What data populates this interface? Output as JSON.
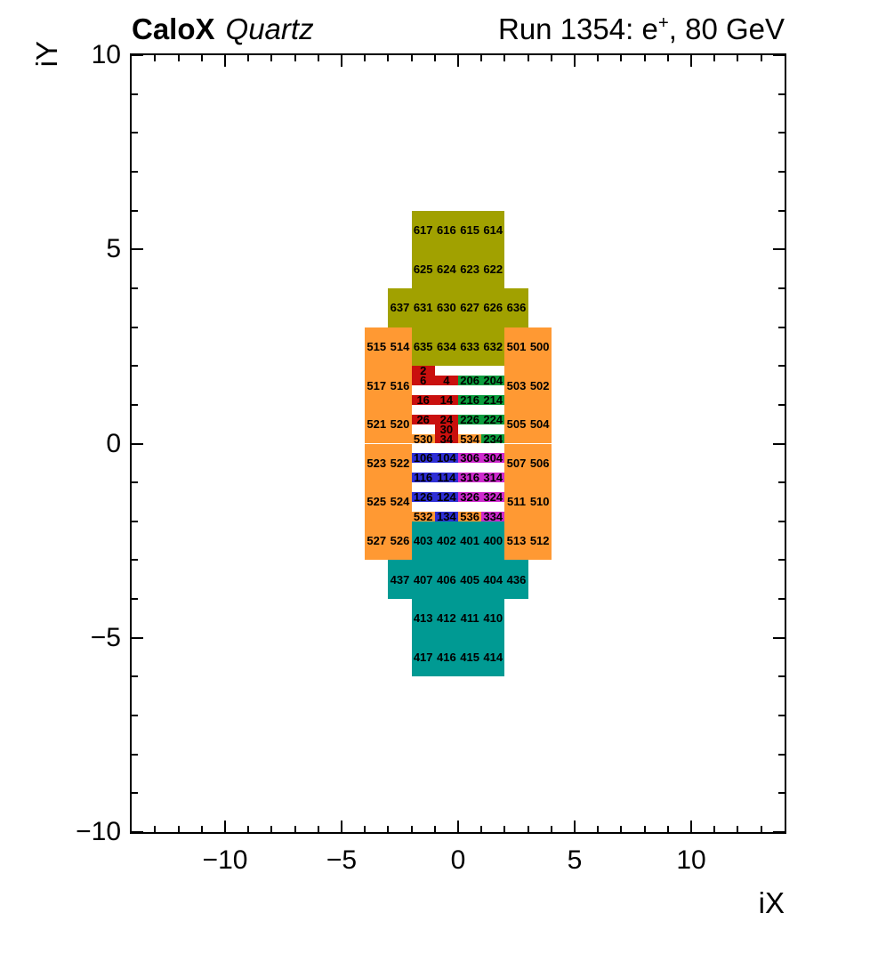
{
  "titles": {
    "left_primary": "CaloX",
    "left_secondary": "Quartz",
    "right_prefix": "Run 1354: e",
    "right_sup": "+",
    "right_suffix": ", 80 GeV"
  },
  "chart_data": {
    "type": "heatmap",
    "title": "CaloX Quartz — Run 1354: e+, 80 GeV",
    "xlabel": "iX",
    "ylabel": "iY",
    "xlim": [
      -14,
      14
    ],
    "ylim": [
      -10,
      10
    ],
    "grid": false,
    "x_ticks": {
      "values": [
        -10,
        -5,
        0,
        5,
        10
      ],
      "labels": [
        "−10",
        "−5",
        "0",
        "5",
        "10"
      ]
    },
    "y_ticks": {
      "values": [
        10,
        5,
        0,
        -5,
        -10
      ],
      "labels": [
        "10",
        "5",
        "0",
        "−5",
        "−10"
      ]
    },
    "minor_tick_step": 1,
    "colors": {
      "orange": "#FF9933",
      "olive": "#A1A100",
      "teal": "#009A93",
      "red": "#C9100E",
      "green": "#0A9C3C",
      "blue": "#2E2ED6",
      "magenta": "#CE29CE"
    },
    "cells_format": [
      "label",
      "ix_left",
      "iy_top",
      "width_units",
      "height_units",
      "color_key"
    ],
    "cells": [
      [
        617,
        -2,
        6,
        1,
        1,
        "olive"
      ],
      [
        616,
        -1,
        6,
        1,
        1,
        "olive"
      ],
      [
        615,
        0,
        6,
        1,
        1,
        "olive"
      ],
      [
        614,
        1,
        6,
        1,
        1,
        "olive"
      ],
      [
        625,
        -2,
        5,
        1,
        1,
        "olive"
      ],
      [
        624,
        -1,
        5,
        1,
        1,
        "olive"
      ],
      [
        623,
        0,
        5,
        1,
        1,
        "olive"
      ],
      [
        622,
        1,
        5,
        1,
        1,
        "olive"
      ],
      [
        637,
        -3,
        4,
        1,
        1,
        "olive"
      ],
      [
        631,
        -2,
        4,
        1,
        1,
        "olive"
      ],
      [
        630,
        -1,
        4,
        1,
        1,
        "olive"
      ],
      [
        627,
        0,
        4,
        1,
        1,
        "olive"
      ],
      [
        626,
        1,
        4,
        1,
        1,
        "olive"
      ],
      [
        636,
        2,
        4,
        1,
        1,
        "olive"
      ],
      [
        635,
        -2,
        3,
        1,
        1,
        "olive"
      ],
      [
        634,
        -1,
        3,
        1,
        1,
        "olive"
      ],
      [
        633,
        0,
        3,
        1,
        1,
        "olive"
      ],
      [
        632,
        1,
        3,
        1,
        1,
        "olive"
      ],
      [
        515,
        -4,
        3,
        1,
        1,
        "orange"
      ],
      [
        514,
        -3,
        3,
        1,
        1,
        "orange"
      ],
      [
        501,
        2,
        3,
        1,
        1,
        "orange"
      ],
      [
        500,
        3,
        3,
        1,
        1,
        "orange"
      ],
      [
        517,
        -4,
        2,
        1,
        1,
        "orange"
      ],
      [
        516,
        -3,
        2,
        1,
        1,
        "orange"
      ],
      [
        503,
        2,
        2,
        1,
        1,
        "orange"
      ],
      [
        502,
        3,
        2,
        1,
        1,
        "orange"
      ],
      [
        521,
        -4,
        1,
        1,
        1,
        "orange"
      ],
      [
        520,
        -3,
        1,
        1,
        1,
        "orange"
      ],
      [
        505,
        2,
        1,
        1,
        1,
        "orange"
      ],
      [
        504,
        3,
        1,
        1,
        1,
        "orange"
      ],
      [
        523,
        -4,
        0,
        1,
        1,
        "orange"
      ],
      [
        522,
        -3,
        0,
        1,
        1,
        "orange"
      ],
      [
        507,
        2,
        0,
        1,
        1,
        "orange"
      ],
      [
        506,
        3,
        0,
        1,
        1,
        "orange"
      ],
      [
        525,
        -4,
        -1,
        1,
        1,
        "orange"
      ],
      [
        524,
        -3,
        -1,
        1,
        1,
        "orange"
      ],
      [
        511,
        2,
        -1,
        1,
        1,
        "orange"
      ],
      [
        510,
        3,
        -1,
        1,
        1,
        "orange"
      ],
      [
        527,
        -4,
        -2,
        1,
        1,
        "orange"
      ],
      [
        526,
        -3,
        -2,
        1,
        1,
        "orange"
      ],
      [
        513,
        2,
        -2,
        1,
        1,
        "orange"
      ],
      [
        512,
        3,
        -2,
        1,
        1,
        "orange"
      ],
      [
        403,
        -2,
        -2,
        1,
        1,
        "teal"
      ],
      [
        402,
        -1,
        -2,
        1,
        1,
        "teal"
      ],
      [
        401,
        0,
        -2,
        1,
        1,
        "teal"
      ],
      [
        400,
        1,
        -2,
        1,
        1,
        "teal"
      ],
      [
        437,
        -3,
        -3,
        1,
        1,
        "teal"
      ],
      [
        407,
        -2,
        -3,
        1,
        1,
        "teal"
      ],
      [
        406,
        -1,
        -3,
        1,
        1,
        "teal"
      ],
      [
        405,
        0,
        -3,
        1,
        1,
        "teal"
      ],
      [
        404,
        1,
        -3,
        1,
        1,
        "teal"
      ],
      [
        436,
        2,
        -3,
        1,
        1,
        "teal"
      ],
      [
        413,
        -2,
        -4,
        1,
        1,
        "teal"
      ],
      [
        412,
        -1,
        -4,
        1,
        1,
        "teal"
      ],
      [
        411,
        0,
        -4,
        1,
        1,
        "teal"
      ],
      [
        410,
        1,
        -4,
        1,
        1,
        "teal"
      ],
      [
        417,
        -2,
        -5,
        1,
        1,
        "teal"
      ],
      [
        416,
        -1,
        -5,
        1,
        1,
        "teal"
      ],
      [
        415,
        0,
        -5,
        1,
        1,
        "teal"
      ],
      [
        414,
        1,
        -5,
        1,
        1,
        "teal"
      ],
      [
        2,
        -2,
        2,
        1,
        0.25,
        "red"
      ],
      [
        6,
        -2,
        1.75,
        1,
        0.25,
        "red"
      ],
      [
        4,
        -1,
        1.75,
        1,
        0.25,
        "red"
      ],
      [
        206,
        0,
        1.75,
        1,
        0.25,
        "green"
      ],
      [
        204,
        1,
        1.75,
        1,
        0.25,
        "green"
      ],
      [
        16,
        -2,
        1.25,
        1,
        0.25,
        "red"
      ],
      [
        14,
        -1,
        1.25,
        1,
        0.25,
        "red"
      ],
      [
        216,
        0,
        1.25,
        1,
        0.25,
        "green"
      ],
      [
        214,
        1,
        1.25,
        1,
        0.25,
        "green"
      ],
      [
        26,
        -2,
        0.75,
        1,
        0.25,
        "red"
      ],
      [
        24,
        -1,
        0.75,
        1,
        0.25,
        "red"
      ],
      [
        226,
        0,
        0.75,
        1,
        0.25,
        "green"
      ],
      [
        224,
        1,
        0.75,
        1,
        0.25,
        "green"
      ],
      [
        30,
        -1,
        0.5,
        1,
        0.25,
        "red"
      ],
      [
        530,
        -2,
        0.25,
        1,
        0.25,
        "orange"
      ],
      [
        34,
        -1,
        0.25,
        1,
        0.25,
        "red"
      ],
      [
        534,
        0,
        0.25,
        1,
        0.25,
        "orange"
      ],
      [
        234,
        1,
        0.25,
        1,
        0.25,
        "green"
      ],
      [
        106,
        -2,
        -0.25,
        1,
        0.25,
        "blue"
      ],
      [
        104,
        -1,
        -0.25,
        1,
        0.25,
        "blue"
      ],
      [
        306,
        0,
        -0.25,
        1,
        0.25,
        "magenta"
      ],
      [
        304,
        1,
        -0.25,
        1,
        0.25,
        "magenta"
      ],
      [
        116,
        -2,
        -0.75,
        1,
        0.25,
        "blue"
      ],
      [
        114,
        -1,
        -0.75,
        1,
        0.25,
        "blue"
      ],
      [
        316,
        0,
        -0.75,
        1,
        0.25,
        "magenta"
      ],
      [
        314,
        1,
        -0.75,
        1,
        0.25,
        "magenta"
      ],
      [
        126,
        -2,
        -1.25,
        1,
        0.25,
        "blue"
      ],
      [
        124,
        -1,
        -1.25,
        1,
        0.25,
        "blue"
      ],
      [
        326,
        0,
        -1.25,
        1,
        0.25,
        "magenta"
      ],
      [
        324,
        1,
        -1.25,
        1,
        0.25,
        "magenta"
      ],
      [
        532,
        -2,
        -1.75,
        1,
        0.25,
        "orange"
      ],
      [
        134,
        -1,
        -1.75,
        1,
        0.25,
        "blue"
      ],
      [
        536,
        0,
        -1.75,
        1,
        0.25,
        "orange"
      ],
      [
        334,
        1,
        -1.75,
        1,
        0.25,
        "magenta"
      ]
    ]
  }
}
